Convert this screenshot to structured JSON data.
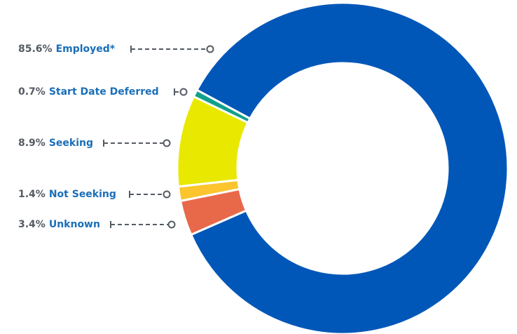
{
  "chart_data": {
    "type": "donut",
    "categories": [
      "Employed*",
      "Start Date Deferred",
      "Seeking",
      "Not Seeking",
      "Unknown"
    ],
    "values": [
      85.6,
      0.7,
      8.9,
      1.4,
      3.4
    ],
    "value_labels": [
      "85.6%",
      "0.7%",
      "8.9%",
      "1.4%",
      "3.4%"
    ],
    "colors": [
      "#0057b8",
      "#12a08a",
      "#e8e800",
      "#fcc52e",
      "#e8684a"
    ]
  }
}
